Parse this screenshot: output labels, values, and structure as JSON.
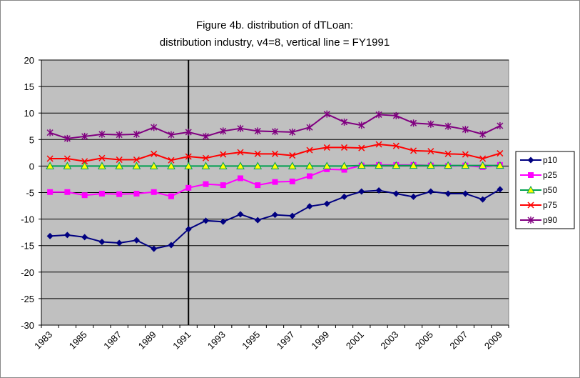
{
  "chart_data": {
    "type": "line",
    "title": "Figure 4b. distribution of dTLoan:",
    "subtitle": "distribution industry, v4=8, vertical line = FY1991",
    "categories": [
      "1983",
      null,
      "1985",
      null,
      "1987",
      null,
      "1989",
      null,
      "1991",
      null,
      "1993",
      null,
      "1995",
      null,
      "1997",
      null,
      "1999",
      null,
      "2001",
      null,
      "2003",
      null,
      "2005",
      null,
      "2007",
      null,
      "2009"
    ],
    "vertical_line_at": "1991",
    "ylim": [
      -30,
      20
    ],
    "yticks": [
      -30,
      -25,
      -20,
      -15,
      -10,
      -5,
      0,
      5,
      10,
      15,
      20
    ],
    "grid": true,
    "legend": "right",
    "plot_background": "#c0c0c0",
    "series": [
      {
        "name": "p10",
        "color": "#000080",
        "marker": "diamond",
        "values": [
          -13.2,
          -13,
          -13.4,
          -14.3,
          -14.5,
          -14,
          -15.6,
          -14.9,
          -11.9,
          -10.3,
          -10.5,
          -9.1,
          -10.2,
          -9.2,
          -9.4,
          -7.6,
          -7.1,
          -5.8,
          -4.8,
          -4.6,
          -5.2,
          -5.8,
          -4.8,
          -5.2,
          -5.2,
          -6.3,
          -4.4
        ]
      },
      {
        "name": "p25",
        "color": "#ff00ff",
        "marker": "square",
        "values": [
          -4.9,
          -4.9,
          -5.5,
          -5.2,
          -5.3,
          -5.2,
          -4.9,
          -5.7,
          -4.1,
          -3.4,
          -3.6,
          -2.3,
          -3.6,
          -3,
          -2.9,
          -1.9,
          -0.6,
          -0.7,
          0.1,
          0.2,
          0.2,
          0.2,
          0.1,
          0,
          0.1,
          -0.2,
          0.2
        ]
      },
      {
        "name": "p50",
        "color": "#00a050",
        "marker": "triangle",
        "values": [
          0,
          0,
          0,
          0,
          0,
          0,
          0,
          0,
          0,
          0,
          0,
          0,
          0,
          0,
          0,
          0,
          0,
          0,
          0.1,
          0.1,
          0.1,
          0.1,
          0.1,
          0.1,
          0.1,
          0.1,
          0.1
        ]
      },
      {
        "name": "p75",
        "color": "#ff0000",
        "marker": "x",
        "values": [
          1.4,
          1.4,
          0.9,
          1.5,
          1.2,
          1.2,
          2.3,
          1.1,
          1.8,
          1.5,
          2.2,
          2.6,
          2.3,
          2.3,
          2,
          3,
          3.5,
          3.5,
          3.4,
          4.1,
          3.8,
          2.9,
          2.8,
          2.3,
          2.2,
          1.4,
          2.4
        ]
      },
      {
        "name": "p90",
        "color": "#800080",
        "marker": "star",
        "values": [
          6.3,
          5.2,
          5.6,
          6,
          5.9,
          6,
          7.3,
          5.9,
          6.4,
          5.6,
          6.6,
          7.1,
          6.6,
          6.5,
          6.4,
          7.3,
          9.8,
          8.3,
          7.7,
          9.7,
          9.5,
          8.1,
          7.9,
          7.5,
          6.9,
          6,
          7.6
        ]
      }
    ]
  }
}
